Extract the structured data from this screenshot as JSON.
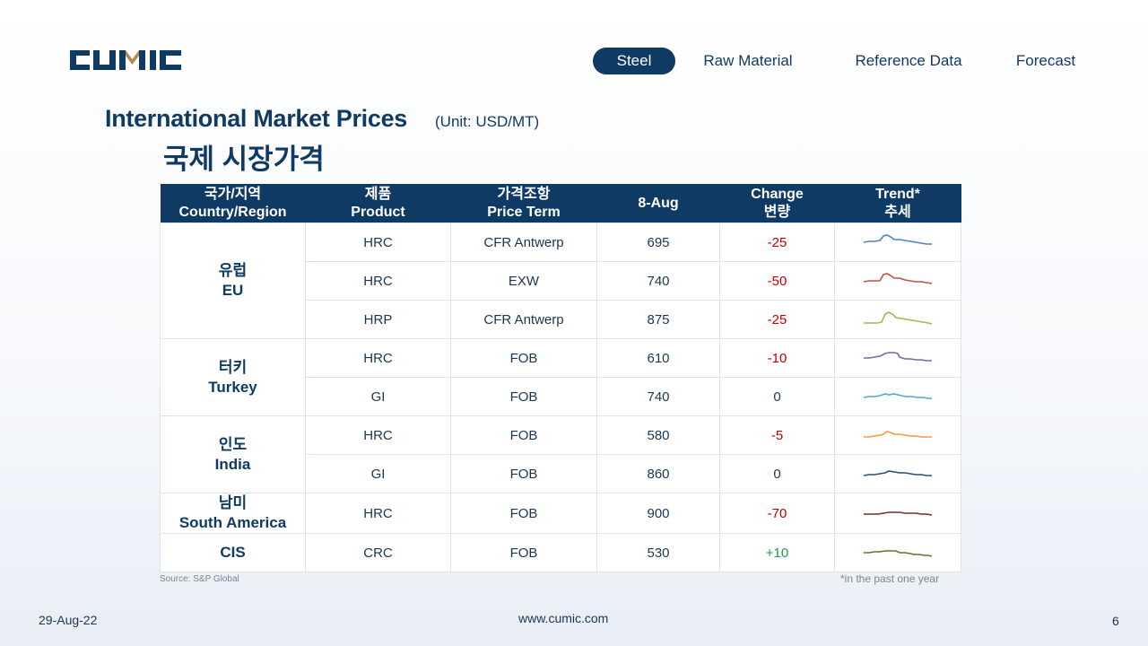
{
  "logo": {
    "text": "CUMIC"
  },
  "nav": [
    {
      "label": "Steel",
      "active": true
    },
    {
      "label": "Raw Material"
    },
    {
      "label": "Reference Data"
    },
    {
      "label": "Forecast"
    }
  ],
  "title": {
    "en": "International Market Prices",
    "unit": "(Unit: USD/MT)",
    "ko": "국제 시장가격"
  },
  "table": {
    "headers": {
      "region_ko": "국가/지역",
      "region_en": "Country/Region",
      "product_ko": "제품",
      "product_en": "Product",
      "term_ko": "가격조항",
      "term_en": "Price Term",
      "date": "8-Aug",
      "change_en": "Change",
      "change_ko": "변량",
      "trend_en": "Trend*",
      "trend_ko": "추세"
    },
    "regions": [
      {
        "ko": "유럽",
        "en": "EU"
      },
      {
        "ko": "터키",
        "en": "Turkey"
      },
      {
        "ko": "인도",
        "en": "India"
      },
      {
        "ko": "남미",
        "en": "South America"
      },
      {
        "ko": "",
        "en": "CIS"
      }
    ],
    "rows": [
      {
        "product": "HRC",
        "term": "CFR Antwerp",
        "price": "695",
        "change": "-25",
        "trend_color": "#4f81bd"
      },
      {
        "product": "HRC",
        "term": "EXW",
        "price": "740",
        "change": "-50",
        "trend_color": "#c0504d"
      },
      {
        "product": "HRP",
        "term": "CFR Antwerp",
        "price": "875",
        "change": "-25",
        "trend_color": "#9bbb59"
      },
      {
        "product": "HRC",
        "term": "FOB",
        "price": "610",
        "change": "-10",
        "trend_color": "#8064a2"
      },
      {
        "product": "GI",
        "term": "FOB",
        "price": "740",
        "change": "0",
        "trend_color": "#4bacc6"
      },
      {
        "product": "HRC",
        "term": "FOB",
        "price": "580",
        "change": "-5",
        "trend_color": "#f79646"
      },
      {
        "product": "GI",
        "term": "FOB",
        "price": "860",
        "change": "0",
        "trend_color": "#2c4d75"
      },
      {
        "product": "HRC",
        "term": "FOB",
        "price": "900",
        "change": "-70",
        "trend_color": "#772c2a"
      },
      {
        "product": "CRC",
        "term": "FOB",
        "price": "530",
        "change": "+10",
        "trend_color": "#5f7530"
      }
    ]
  },
  "footer": {
    "source": "Source: S&P Global",
    "note": "*in the past one year",
    "date": "29-Aug-22",
    "website": "www.cumic.com",
    "page": "6"
  }
}
